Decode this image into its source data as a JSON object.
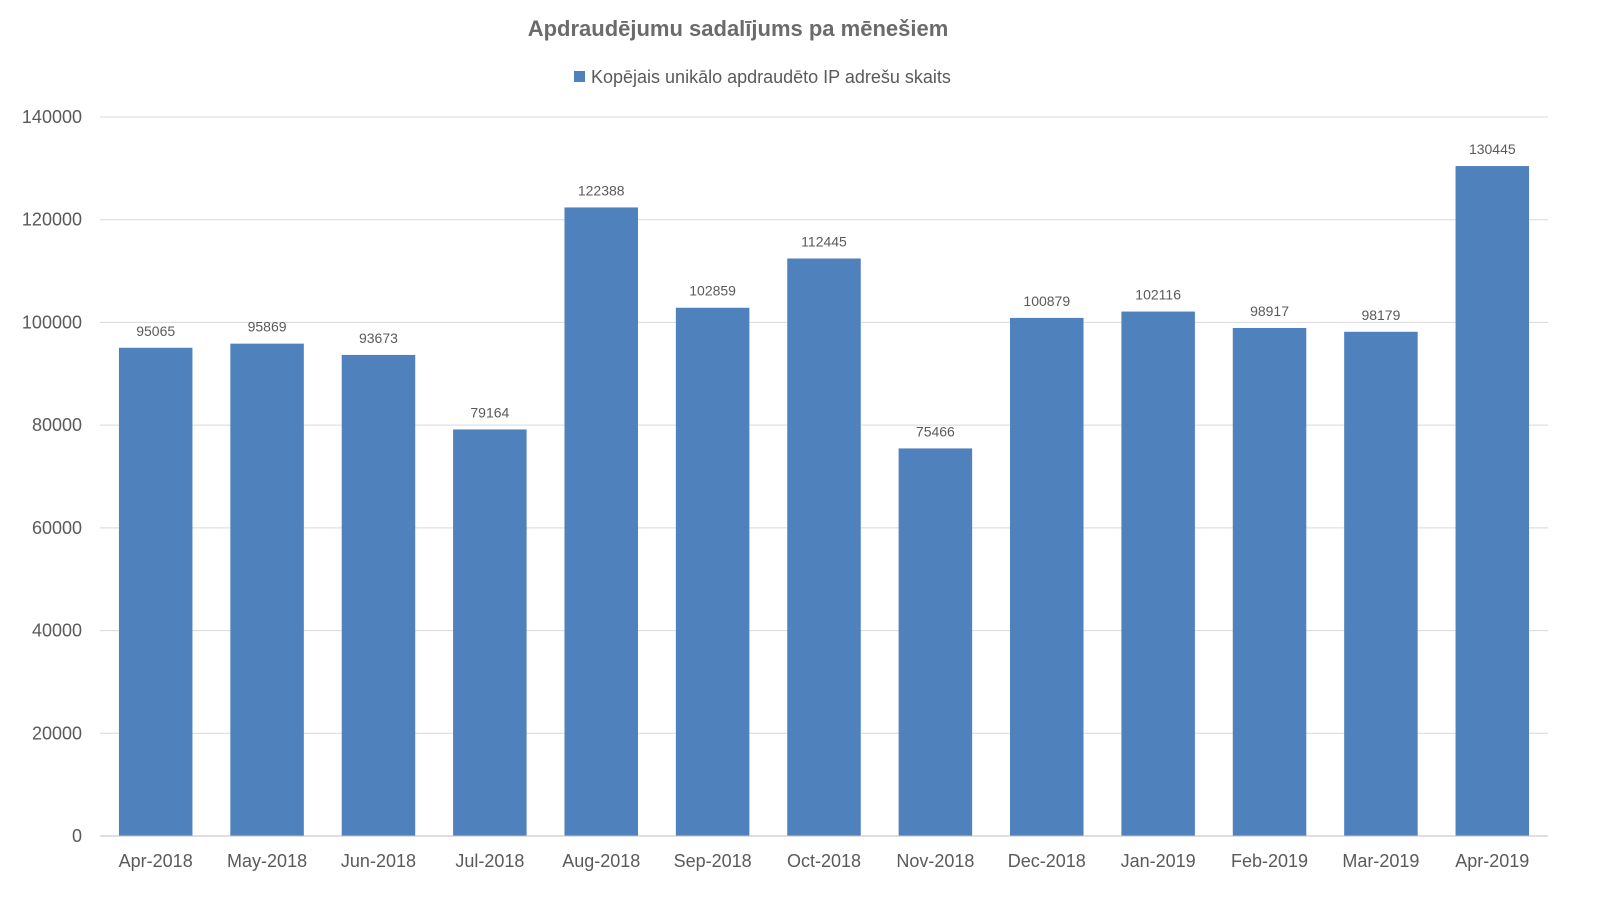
{
  "chart_data": {
    "type": "bar",
    "title": "Apdraudējumu sadalījums pa mēnešiem",
    "legend_position": "top",
    "grid": true,
    "bar_color": "#4F81BD",
    "categories": [
      "Apr-2018",
      "May-2018",
      "Jun-2018",
      "Jul-2018",
      "Aug-2018",
      "Sep-2018",
      "Oct-2018",
      "Nov-2018",
      "Dec-2018",
      "Jan-2019",
      "Feb-2019",
      "Mar-2019",
      "Apr-2019"
    ],
    "series": [
      {
        "name": "Kopējais unikālo apdraudēto IP adrešu skaits",
        "values": [
          95065,
          95869,
          93673,
          79164,
          122388,
          102859,
          112445,
          75466,
          100879,
          102116,
          98917,
          98179,
          130445
        ]
      }
    ],
    "yticks": [
      "0",
      "20000",
      "40000",
      "60000",
      "80000",
      "100000",
      "120000",
      "140000"
    ],
    "ylim": [
      0,
      140000
    ]
  }
}
